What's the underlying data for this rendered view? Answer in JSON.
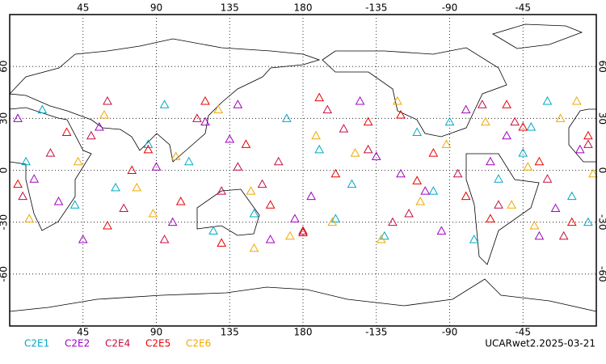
{
  "chart_data": {
    "type": "scatter",
    "footer": "UCARwet2.2025-03-21",
    "xlim": [
      0,
      360
    ],
    "ylim": [
      -90,
      90
    ],
    "xticks": [
      45,
      90,
      135,
      180,
      {
        "value": 225,
        "label": "-135"
      },
      {
        "value": 270,
        "label": "-90"
      },
      {
        "value": 315,
        "label": "-45"
      }
    ],
    "yticks": [
      60,
      30,
      0,
      -30,
      -60
    ],
    "grid": true,
    "series": [
      {
        "name": "C2E1",
        "color": "#00a8c8",
        "x": [
          20,
          65,
          110,
          150,
          190,
          230,
          270,
          300,
          330,
          355,
          40,
          85,
          125,
          170,
          210,
          250,
          285,
          315,
          345,
          10,
          95,
          200,
          260,
          320
        ],
        "values": [
          35,
          -10,
          5,
          -25,
          12,
          -38,
          28,
          -5,
          40,
          -30,
          -20,
          15,
          -35,
          30,
          -8,
          22,
          -40,
          10,
          -15,
          5,
          38,
          -28,
          -12,
          25
        ]
      },
      {
        "name": "C2E2",
        "color": "#a000c0",
        "x": [
          15,
          55,
          100,
          140,
          185,
          225,
          265,
          305,
          335,
          5,
          45,
          90,
          135,
          175,
          215,
          255,
          295,
          325,
          350,
          30,
          120,
          240,
          280,
          160
        ],
        "values": [
          -5,
          25,
          -30,
          38,
          -15,
          8,
          -35,
          20,
          -22,
          30,
          -40,
          2,
          18,
          -28,
          40,
          -12,
          5,
          -38,
          12,
          -18,
          28,
          -2,
          35,
          -40
        ]
      },
      {
        "name": "C2E4",
        "color": "#c01040",
        "x": [
          25,
          70,
          115,
          155,
          195,
          235,
          275,
          310,
          340,
          8,
          50,
          95,
          130,
          165,
          205,
          245,
          290,
          330,
          355,
          60,
          180,
          220,
          300,
          140
        ],
        "values": [
          10,
          -22,
          30,
          -8,
          35,
          -30,
          -2,
          28,
          -38,
          -15,
          20,
          -40,
          -12,
          5,
          24,
          -25,
          38,
          -5,
          15,
          40,
          -35,
          12,
          -20,
          2
        ]
      },
      {
        "name": "C2E5",
        "color": "#e80000",
        "x": [
          35,
          75,
          105,
          145,
          180,
          220,
          260,
          295,
          325,
          355,
          5,
          60,
          120,
          160,
          200,
          240,
          280,
          315,
          345,
          85,
          130,
          250,
          305,
          190
        ],
        "values": [
          22,
          0,
          -18,
          15,
          -36,
          28,
          10,
          -28,
          5,
          20,
          -8,
          -32,
          40,
          -20,
          -2,
          32,
          -15,
          25,
          -30,
          12,
          -42,
          -6,
          38,
          42
        ]
      },
      {
        "name": "C2E6",
        "color": "#f0a800",
        "x": [
          12,
          58,
          102,
          148,
          188,
          228,
          268,
          308,
          338,
          358,
          42,
          88,
          128,
          172,
          212,
          252,
          292,
          322,
          348,
          78,
          198,
          238,
          318,
          150
        ],
        "values": [
          -28,
          32,
          8,
          -12,
          20,
          -40,
          15,
          -20,
          30,
          -2,
          5,
          -25,
          35,
          -38,
          10,
          -18,
          28,
          -32,
          40,
          -10,
          -30,
          40,
          2,
          -45
        ]
      }
    ]
  }
}
